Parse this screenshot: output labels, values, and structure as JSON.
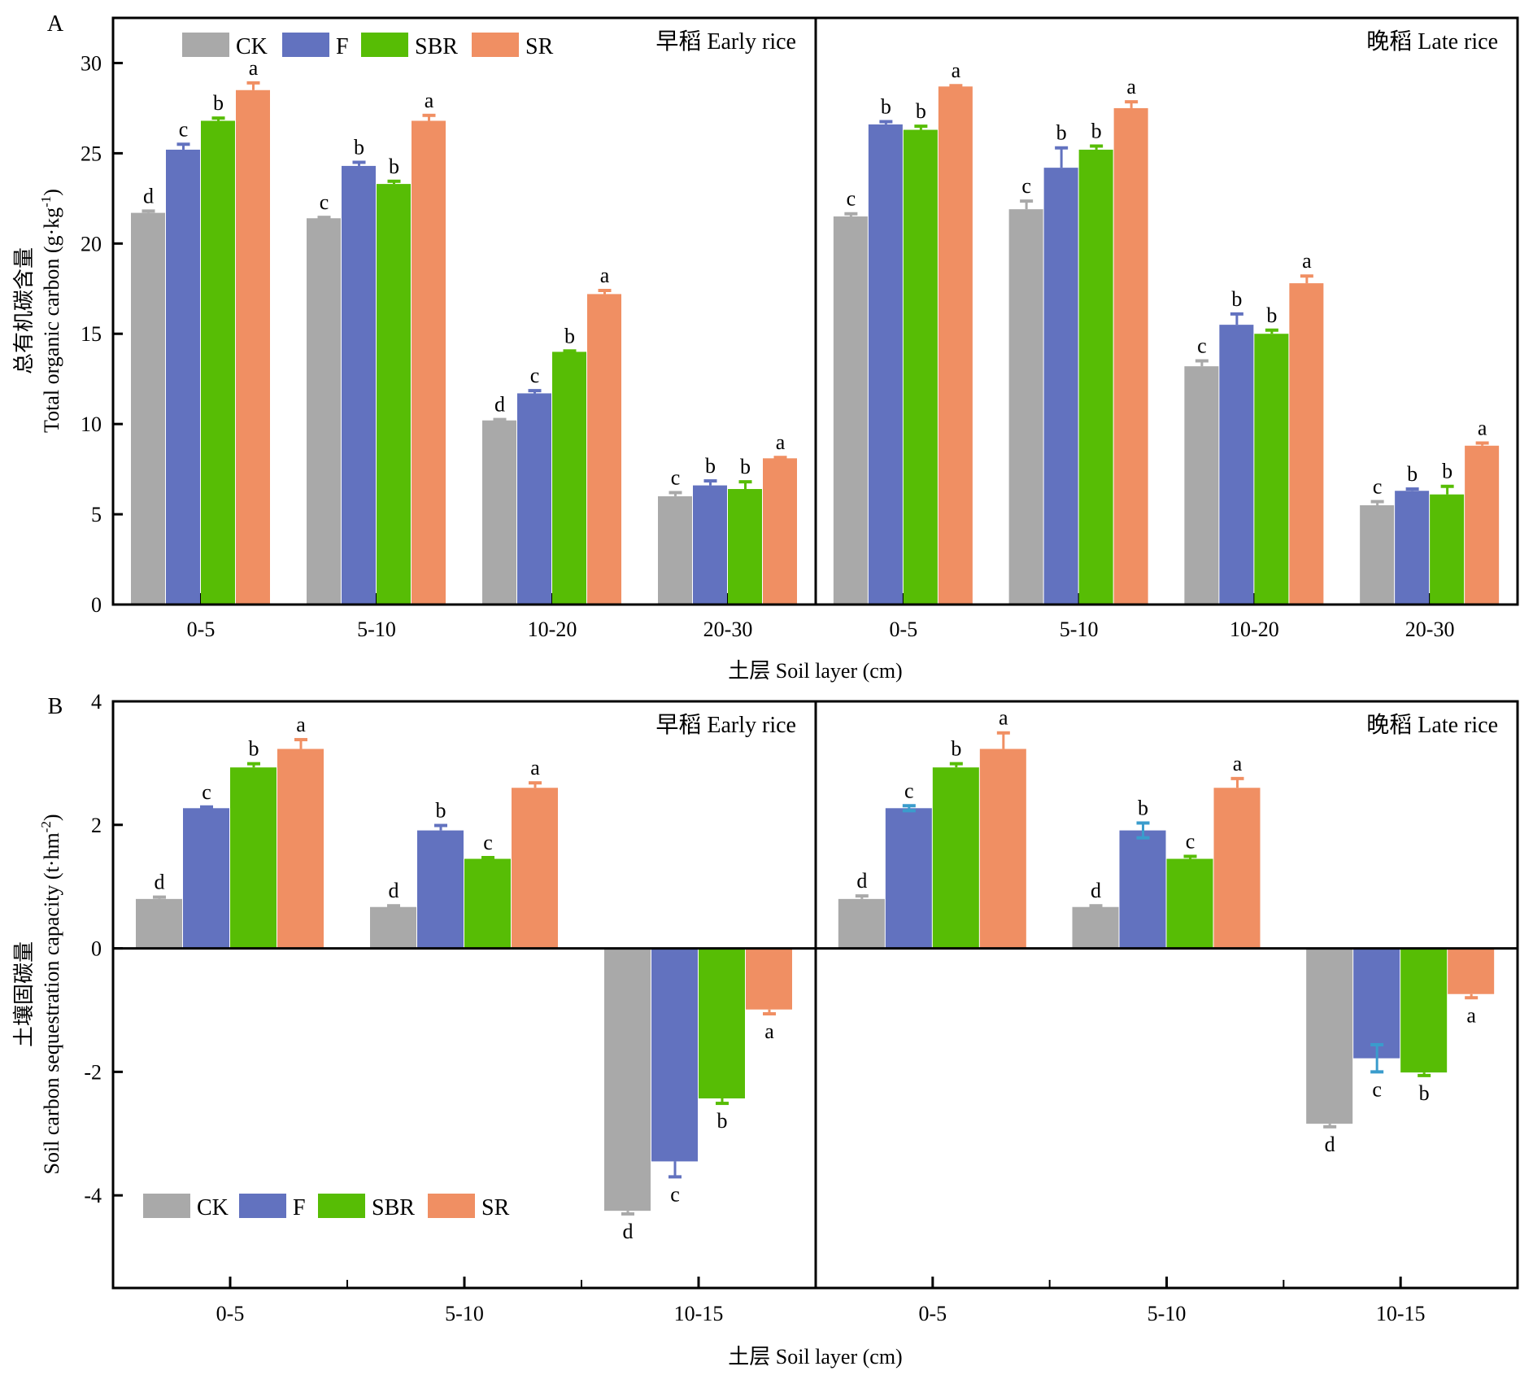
{
  "chart_data": [
    {
      "panel": "A",
      "type": "bar",
      "ylabel_cn": "总有机碳含量",
      "ylabel_en": "Total organic carbon (g·kg",
      "ylabel_sup": "-1",
      "ylabel_close": ")",
      "xlabel": "土层 Soil layer (cm)",
      "ylim": [
        0,
        32.5
      ],
      "yticks": [
        0,
        5,
        10,
        15,
        20,
        25,
        30
      ],
      "legend_position": "top-left",
      "series_names": [
        "CK",
        "F",
        "SBR",
        "SR"
      ],
      "subpanels": [
        {
          "title": "早稻 Early rice",
          "categories": [
            "0-5",
            "5-10",
            "10-20",
            "20-30"
          ],
          "series": [
            {
              "name": "CK",
              "values": [
                21.7,
                21.4,
                10.2,
                6.0
              ],
              "errors": [
                0.1,
                0.05,
                0.05,
                0.2
              ],
              "letters": [
                "d",
                "c",
                "d",
                "c"
              ]
            },
            {
              "name": "F",
              "values": [
                25.2,
                24.3,
                11.7,
                6.6
              ],
              "errors": [
                0.3,
                0.2,
                0.15,
                0.25
              ],
              "letters": [
                "c",
                "b",
                "c",
                "b"
              ]
            },
            {
              "name": "SBR",
              "values": [
                26.8,
                23.3,
                14.0,
                6.4
              ],
              "errors": [
                0.15,
                0.15,
                0.05,
                0.4
              ],
              "letters": [
                "b",
                "b",
                "b",
                "b"
              ]
            },
            {
              "name": "SR",
              "values": [
                28.5,
                26.8,
                17.2,
                8.1
              ],
              "errors": [
                0.4,
                0.3,
                0.2,
                0.05
              ],
              "letters": [
                "a",
                "a",
                "a",
                "a"
              ]
            }
          ]
        },
        {
          "title": "晚稻 Late rice",
          "categories": [
            "0-5",
            "5-10",
            "10-20",
            "20-30"
          ],
          "series": [
            {
              "name": "CK",
              "values": [
                21.5,
                21.9,
                13.2,
                5.5
              ],
              "errors": [
                0.15,
                0.45,
                0.3,
                0.2
              ],
              "letters": [
                "c",
                "c",
                "c",
                "c"
              ]
            },
            {
              "name": "F",
              "values": [
                26.6,
                24.2,
                15.5,
                6.3
              ],
              "errors": [
                0.15,
                1.1,
                0.6,
                0.1
              ],
              "letters": [
                "b",
                "b",
                "b",
                "b"
              ]
            },
            {
              "name": "SBR",
              "values": [
                26.3,
                25.2,
                15.0,
                6.1
              ],
              "errors": [
                0.2,
                0.2,
                0.2,
                0.45
              ],
              "letters": [
                "b",
                "b",
                "b",
                "b"
              ]
            },
            {
              "name": "SR",
              "values": [
                28.7,
                27.5,
                17.8,
                8.8
              ],
              "errors": [
                0.05,
                0.35,
                0.4,
                0.15
              ],
              "letters": [
                "a",
                "a",
                "a",
                "a"
              ]
            }
          ]
        }
      ]
    },
    {
      "panel": "B",
      "type": "bar",
      "ylabel_cn": "土壤固碳量",
      "ylabel_en": "Soil carbon sequestration capacity (t·hm",
      "ylabel_sup": "-2",
      "ylabel_close": ")",
      "xlabel": "土层 Soil layer (cm)",
      "ylim": [
        -5.5,
        4
      ],
      "yticks": [
        -4,
        -2,
        0,
        2,
        4
      ],
      "legend_position": "bottom-left",
      "series_names": [
        "CK",
        "F",
        "SBR",
        "SR"
      ],
      "subpanels": [
        {
          "title": "早稻 Early rice",
          "categories": [
            "0-5",
            "5-10",
            "10-15"
          ],
          "series": [
            {
              "name": "CK",
              "values": [
                0.8,
                0.67,
                -4.25
              ],
              "errors": [
                0.03,
                0.02,
                0.05
              ],
              "letters": [
                "d",
                "d",
                "d"
              ]
            },
            {
              "name": "F",
              "values": [
                2.27,
                1.91,
                -3.45
              ],
              "errors": [
                0.02,
                0.08,
                0.25
              ],
              "letters": [
                "c",
                "b",
                "c"
              ]
            },
            {
              "name": "SBR",
              "values": [
                2.93,
                1.45,
                -2.43
              ],
              "errors": [
                0.06,
                0.02,
                0.08
              ],
              "letters": [
                "b",
                "c",
                "b"
              ]
            },
            {
              "name": "SR",
              "values": [
                3.23,
                2.6,
                -0.99
              ],
              "errors": [
                0.15,
                0.08,
                0.07
              ],
              "letters": [
                "a",
                "a",
                "a"
              ]
            }
          ]
        },
        {
          "title": "晚稻 Late rice",
          "categories": [
            "0-5",
            "5-10",
            "10-15"
          ],
          "series": [
            {
              "name": "CK",
              "values": [
                0.8,
                0.67,
                -2.84
              ],
              "errors": [
                0.05,
                0.02,
                0.05
              ],
              "letters": [
                "d",
                "d",
                "d"
              ]
            },
            {
              "name": "F",
              "values": [
                2.27,
                1.91,
                -1.78
              ],
              "errors": [
                0.04,
                0.12,
                0.22
              ],
              "letters": [
                "c",
                "b",
                "c"
              ],
              "two_sided_error": true
            },
            {
              "name": "SBR",
              "values": [
                2.93,
                1.45,
                -2.01
              ],
              "errors": [
                0.06,
                0.04,
                0.05
              ],
              "letters": [
                "b",
                "c",
                "b"
              ]
            },
            {
              "name": "SR",
              "values": [
                3.23,
                2.6,
                -0.74
              ],
              "errors": [
                0.26,
                0.15,
                0.06
              ],
              "letters": [
                "a",
                "a",
                "a"
              ]
            }
          ]
        }
      ]
    }
  ],
  "colors": {
    "CK": "#a9a9a9",
    "F": "#6272bf",
    "SBR": "#57bd05",
    "SR": "#f08f63",
    "F_error_alt": "#3a9ccc"
  },
  "labels": {
    "panel_a": "A",
    "panel_b": "B"
  }
}
